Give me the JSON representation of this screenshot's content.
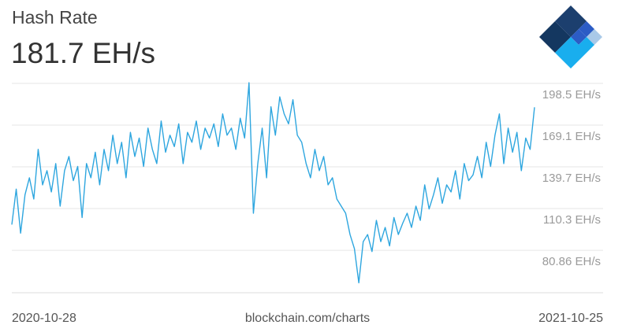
{
  "chart_data": {
    "type": "line",
    "title": "Hash Rate",
    "subtitle": "181.7 EH/s",
    "source": "blockchain.com/charts",
    "categories": [
      "2020-10-28",
      null,
      null,
      null,
      null,
      null,
      null,
      null,
      null,
      null,
      null,
      null,
      null,
      null,
      null,
      null,
      null,
      null,
      null,
      null,
      null,
      null,
      null,
      null,
      null,
      null,
      null,
      null,
      null,
      null,
      null,
      null,
      null,
      null,
      null,
      null,
      null,
      null,
      null,
      null,
      null,
      null,
      null,
      null,
      null,
      null,
      null,
      null,
      null,
      null,
      null,
      null,
      null,
      null,
      null,
      null,
      null,
      null,
      null,
      null,
      null,
      null,
      null,
      null,
      null,
      null,
      null,
      null,
      null,
      null,
      null,
      null,
      null,
      null,
      null,
      null,
      null,
      null,
      null,
      null,
      null,
      null,
      null,
      null,
      null,
      null,
      null,
      null,
      null,
      null,
      null,
      null,
      null,
      null,
      null,
      null,
      null,
      null,
      null,
      null,
      null,
      null,
      null,
      null,
      null,
      null,
      null,
      null,
      null,
      null,
      null,
      null,
      null,
      null,
      null,
      null,
      null,
      null,
      null,
      "2021-10-25"
    ],
    "series": [
      {
        "name": "Hash Rate",
        "color": "#2ea6df",
        "values": [
          99,
          124,
          93,
          120,
          132,
          117,
          152,
          127,
          137,
          122,
          142,
          112,
          137,
          147,
          130,
          140,
          104,
          142,
          132,
          150,
          127,
          152,
          137,
          162,
          142,
          157,
          132,
          164,
          147,
          160,
          140,
          167,
          152,
          142,
          172,
          150,
          162,
          154,
          170,
          142,
          164,
          157,
          172,
          152,
          167,
          160,
          170,
          154,
          177,
          162,
          167,
          152,
          174,
          160,
          199,
          107,
          142,
          167,
          132,
          182,
          162,
          189,
          177,
          170,
          187,
          162,
          157,
          142,
          132,
          152,
          137,
          147,
          127,
          132,
          117,
          112,
          107,
          92,
          82,
          58,
          87,
          92,
          80,
          102,
          87,
          97,
          84,
          104,
          92,
          100,
          107,
          97,
          112,
          102,
          127,
          110,
          120,
          132,
          114,
          127,
          122,
          137,
          117,
          142,
          130,
          134,
          147,
          132,
          157,
          140,
          162,
          177,
          142,
          167,
          150,
          164,
          137,
          160,
          152,
          181.7
        ]
      }
    ],
    "ylim": [
      51,
      199.6
    ],
    "yticks": [
      {
        "value": 80.86,
        "label": "80.86 EH/s"
      },
      {
        "value": 110.3,
        "label": "110.3 EH/s"
      },
      {
        "value": 139.7,
        "label": "139.7 EH/s"
      },
      {
        "value": 169.1,
        "label": "169.1 EH/s"
      },
      {
        "value": 198.5,
        "label": "198.5 EH/s"
      }
    ],
    "grid": true
  }
}
